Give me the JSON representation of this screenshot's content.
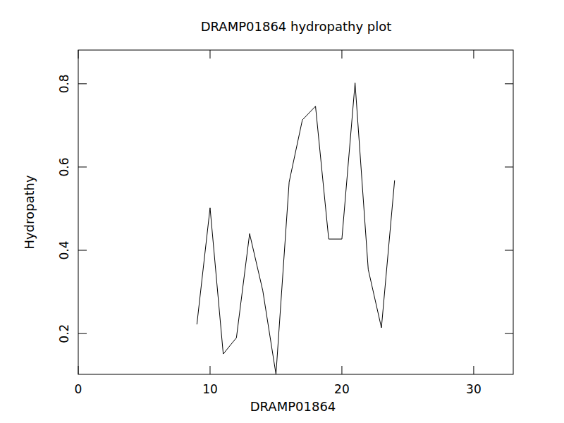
{
  "chart_data": {
    "type": "line",
    "title": "DRAMP01864 hydropathy plot",
    "x_label": "DRAMP01864",
    "y_label": "Hydropathy",
    "x": [
      9,
      10,
      11,
      12,
      13,
      14,
      15,
      16,
      17,
      18,
      19,
      20,
      21,
      22,
      23,
      24
    ],
    "series": [
      {
        "name": "Hydropathy",
        "color": "#000000",
        "values": [
          0.222,
          0.502,
          0.151,
          0.19,
          0.44,
          0.303,
          0.102,
          0.564,
          0.713,
          0.746,
          0.427,
          0.427,
          0.802,
          0.354,
          0.214,
          0.568
        ]
      }
    ],
    "xlim": [
      0,
      33
    ],
    "ylim": [
      0.102,
      0.881
    ],
    "xticks": [
      0,
      10,
      20,
      30
    ],
    "yticks": [
      0.2,
      0.4,
      0.6,
      0.8
    ],
    "grid": false
  }
}
